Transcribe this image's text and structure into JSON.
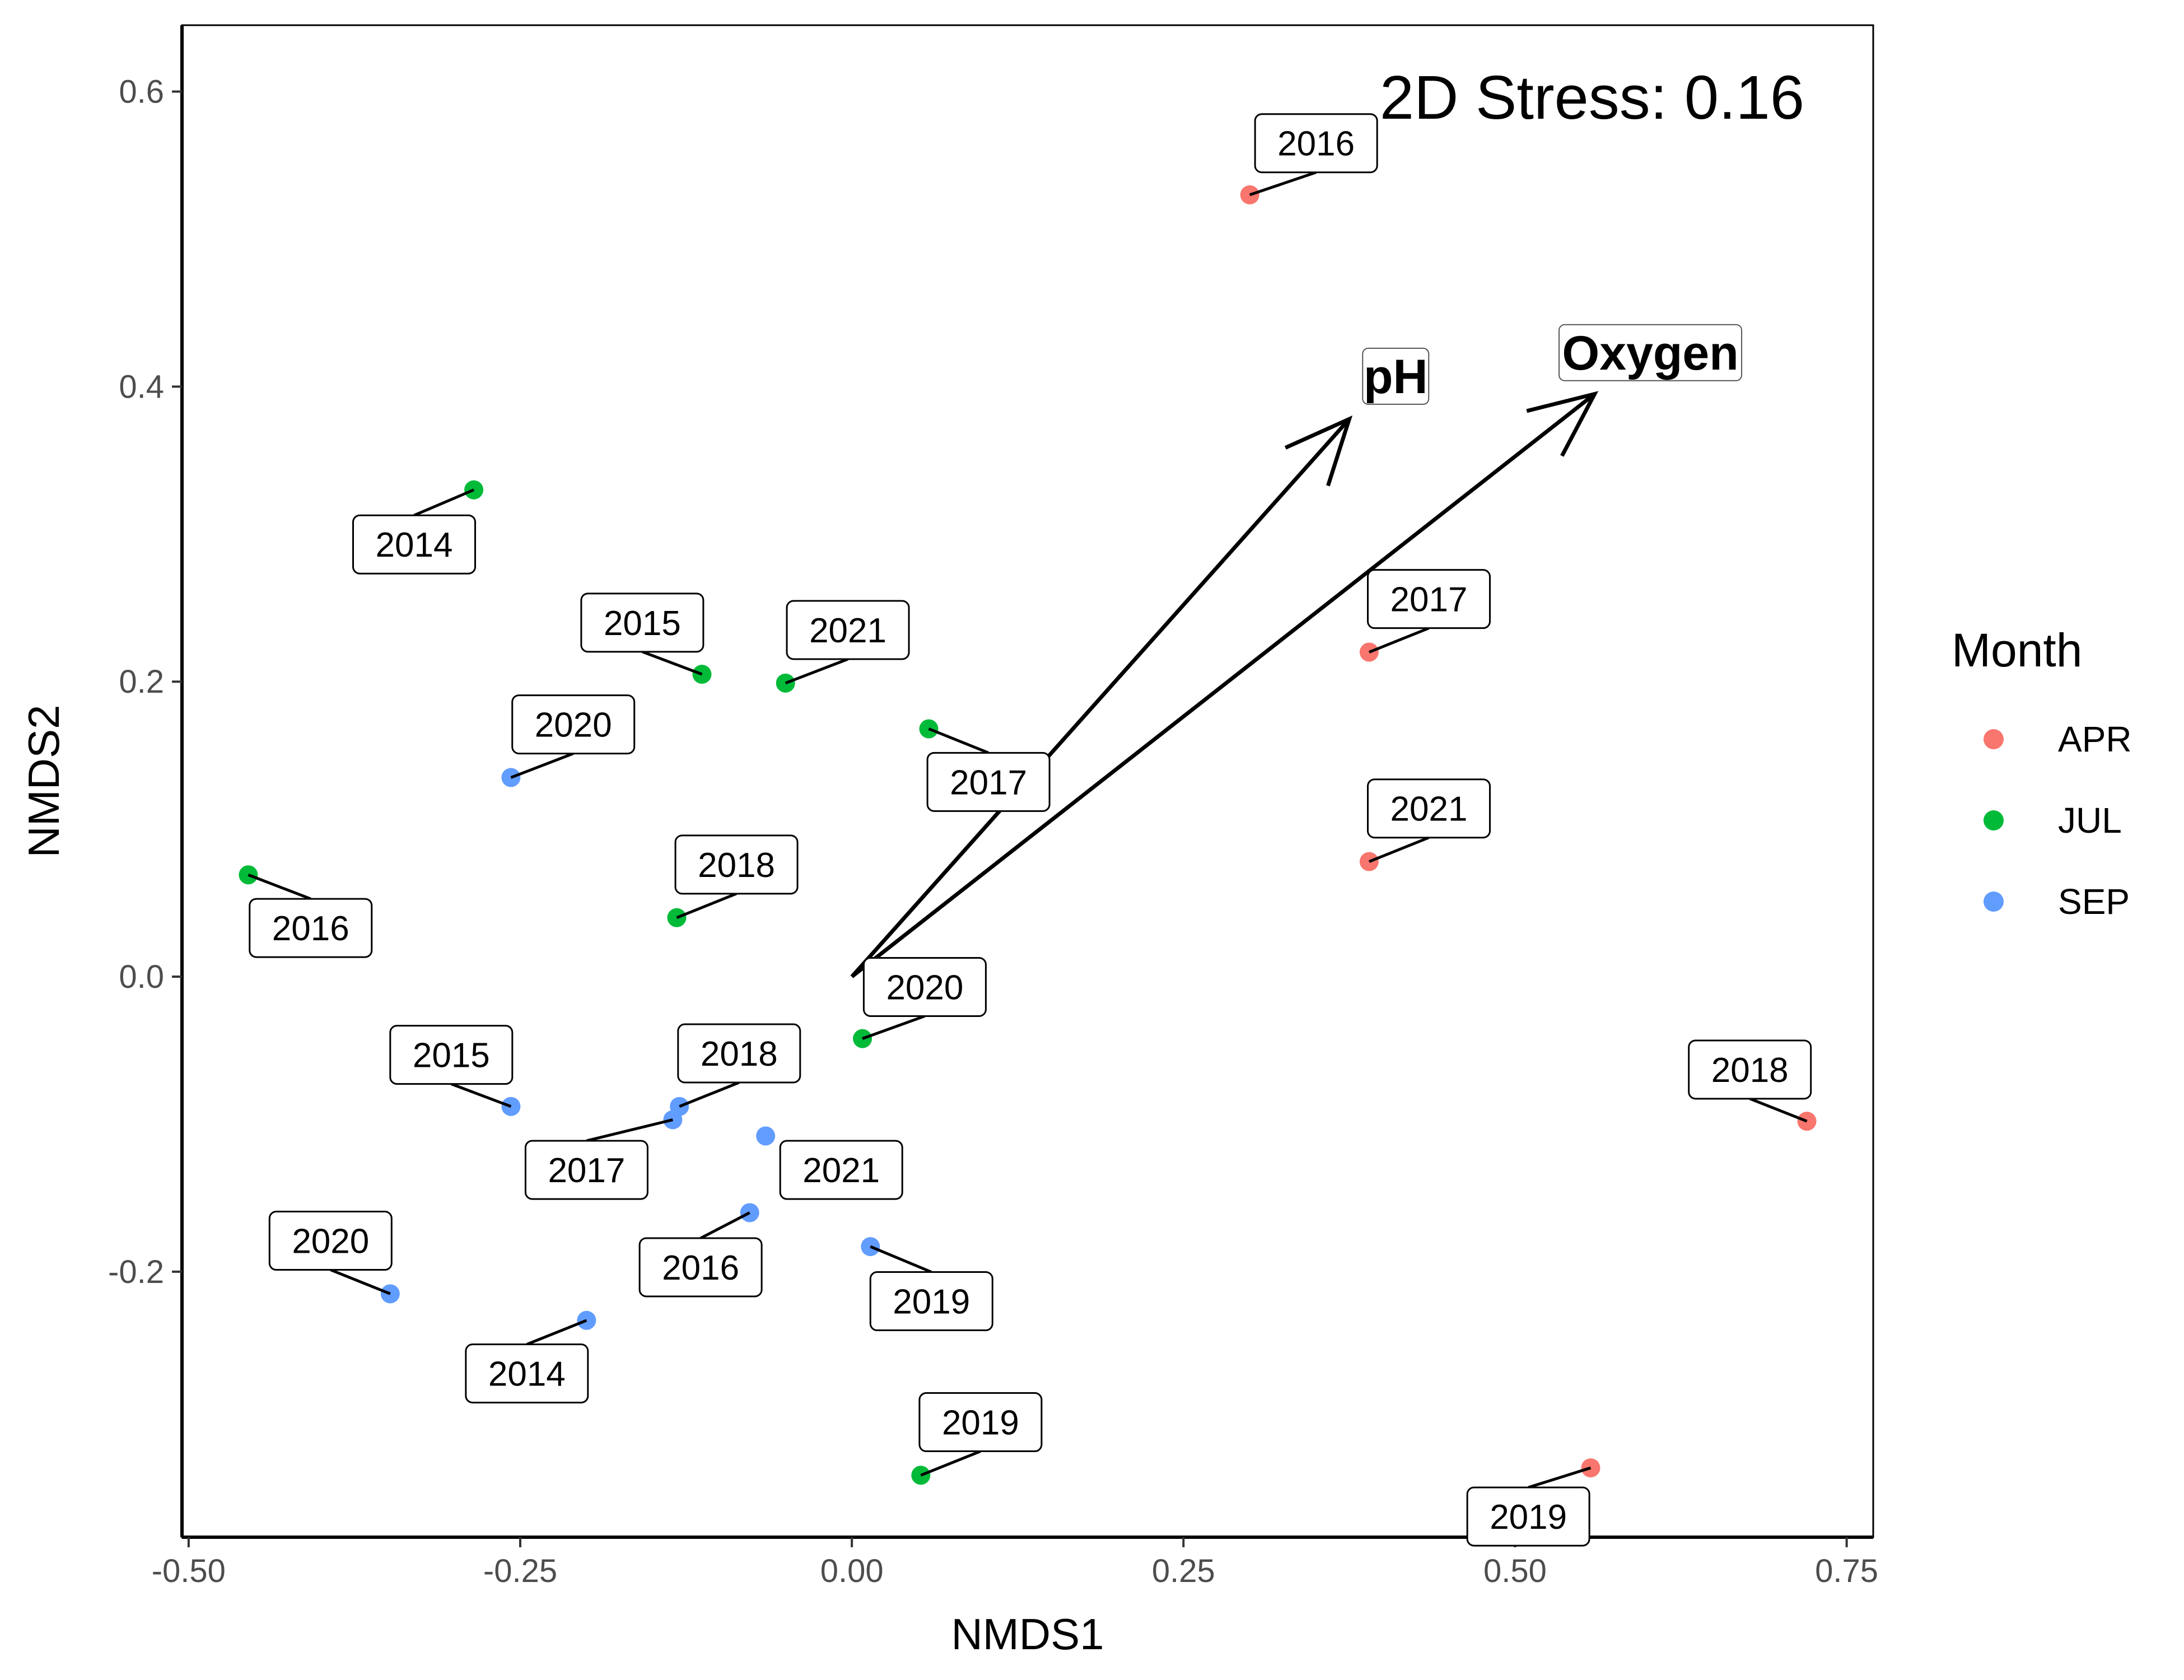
{
  "chart_data": {
    "type": "scatter",
    "title": "",
    "xlabel": "NMDS1",
    "ylabel": "NMDS2",
    "xlim": [
      -0.505,
      0.77
    ],
    "ylim": [
      -0.38,
      0.645
    ],
    "x_ticks": [
      -0.5,
      -0.25,
      0.0,
      0.25,
      0.5,
      0.75
    ],
    "x_tick_labels": [
      "-0.50",
      "-0.25",
      "0.00",
      "0.25",
      "0.50",
      "0.75"
    ],
    "y_ticks": [
      -0.2,
      0.0,
      0.2,
      0.4,
      0.6
    ],
    "y_tick_labels": [
      "-0.2",
      "0.0",
      "0.2",
      "0.4",
      "0.6"
    ],
    "grid": false,
    "legend": {
      "title": "Month",
      "placement": "right"
    },
    "annotation": "2D Stress: 0.16",
    "series": [
      {
        "name": "APR",
        "color": "#F8766D",
        "points": [
          {
            "x": 0.3,
            "y": 0.53,
            "label": "2016",
            "lx": 0.35,
            "ly": 0.565
          },
          {
            "x": 0.39,
            "y": 0.22,
            "label": "2017",
            "lx": 0.435,
            "ly": 0.256
          },
          {
            "x": 0.39,
            "y": 0.078,
            "label": "2021",
            "lx": 0.435,
            "ly": 0.114
          },
          {
            "x": 0.72,
            "y": -0.098,
            "label": "2018",
            "lx": 0.677,
            "ly": -0.063
          },
          {
            "x": 0.557,
            "y": -0.333,
            "label": "2019",
            "lx": 0.51,
            "ly": -0.366
          }
        ]
      },
      {
        "name": "JUL",
        "color": "#00BA38",
        "points": [
          {
            "x": -0.285,
            "y": 0.33,
            "label": "2014",
            "lx": -0.33,
            "ly": 0.293
          },
          {
            "x": -0.113,
            "y": 0.205,
            "label": "2015",
            "lx": -0.158,
            "ly": 0.24
          },
          {
            "x": -0.05,
            "y": 0.199,
            "label": "2021",
            "lx": -0.003,
            "ly": 0.235
          },
          {
            "x": 0.058,
            "y": 0.168,
            "label": "2017",
            "lx": 0.103,
            "ly": 0.132
          },
          {
            "x": -0.455,
            "y": 0.069,
            "label": "2016",
            "lx": -0.408,
            "ly": 0.033
          },
          {
            "x": -0.132,
            "y": 0.04,
            "label": "2018",
            "lx": -0.087,
            "ly": 0.076
          },
          {
            "x": 0.008,
            "y": -0.042,
            "label": "2020",
            "lx": 0.055,
            "ly": -0.007
          },
          {
            "x": 0.052,
            "y": -0.338,
            "label": "2019",
            "lx": 0.097,
            "ly": -0.302
          }
        ]
      },
      {
        "name": "SEP",
        "color": "#619CFF",
        "points": [
          {
            "x": -0.257,
            "y": 0.135,
            "label": "2020",
            "lx": -0.21,
            "ly": 0.171
          },
          {
            "x": -0.257,
            "y": -0.088,
            "label": "2015",
            "lx": -0.302,
            "ly": -0.053
          },
          {
            "x": -0.13,
            "y": -0.088,
            "label": "2018",
            "lx": -0.085,
            "ly": -0.052
          },
          {
            "x": -0.135,
            "y": -0.097,
            "label": "2017",
            "lx": -0.2,
            "ly": -0.131
          },
          {
            "x": -0.065,
            "y": -0.108,
            "label": "2021",
            "lx": -0.008,
            "ly": -0.131
          },
          {
            "x": -0.077,
            "y": -0.16,
            "label": "2016",
            "lx": -0.114,
            "ly": -0.197
          },
          {
            "x": 0.014,
            "y": -0.183,
            "label": "2019",
            "lx": 0.06,
            "ly": -0.22
          },
          {
            "x": -0.348,
            "y": -0.215,
            "label": "2020",
            "lx": -0.393,
            "ly": -0.179
          },
          {
            "x": -0.2,
            "y": -0.233,
            "label": "2014",
            "lx": -0.245,
            "ly": -0.269
          }
        ]
      }
    ],
    "vectors": [
      {
        "name": "pH",
        "x": 0.375,
        "y": 0.378,
        "lx": 0.41,
        "ly": 0.407
      },
      {
        "name": "Oxygen",
        "x": 0.56,
        "y": 0.395,
        "lx": 0.602,
        "ly": 0.423
      }
    ]
  }
}
